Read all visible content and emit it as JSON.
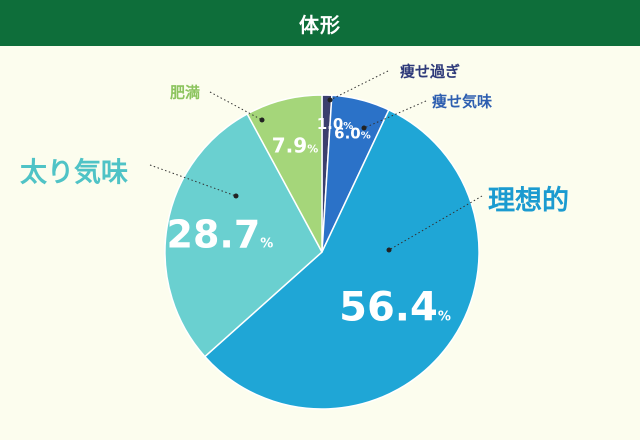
{
  "header": {
    "title": "体形"
  },
  "chart_data": {
    "type": "pie",
    "title": "体形",
    "start_angle_deg": 0,
    "direction": "clockwise",
    "series": [
      {
        "name": "痩せ過ぎ",
        "value": 1.0,
        "label": "1.0",
        "unit": "%",
        "color": "#3b3f6e"
      },
      {
        "name": "痩せ気味",
        "value": 6.0,
        "label": "6.0",
        "unit": "%",
        "color": "#2b72c8"
      },
      {
        "name": "理想的",
        "value": 56.4,
        "label": "56.4",
        "unit": "%",
        "color": "#1fa6d6"
      },
      {
        "name": "太り気味",
        "value": 28.7,
        "label": "28.7",
        "unit": "%",
        "color": "#6ad0d0"
      },
      {
        "name": "肥満",
        "value": 7.9,
        "label": "7.9",
        "unit": "%",
        "color": "#a5d67a"
      }
    ],
    "category_label_colors": {
      "痩せ過ぎ": "#2e3a7a",
      "痩せ気味": "#2e5fb0",
      "理想的": "#1b9bd0",
      "太り気味": "#4fc3c6",
      "肥満": "#8cc45e"
    }
  }
}
